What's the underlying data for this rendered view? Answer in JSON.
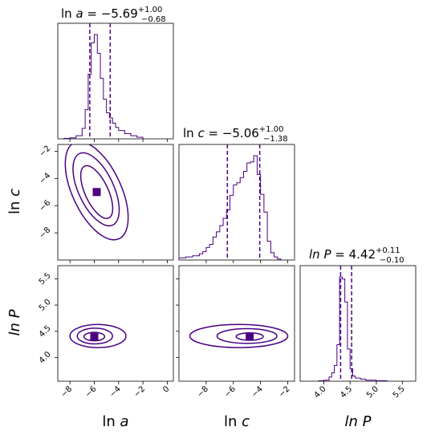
{
  "chart_data": {
    "type": "corner",
    "color": "#4b0082",
    "parameters": [
      {
        "key": "lna",
        "label_text": "ln ",
        "label_var": "a",
        "italic_all": false,
        "title_prefix": "ln ",
        "title_var": "a",
        "median": "−5.69",
        "plus": "+1.00",
        "minus": "−0.68",
        "range": [
          -9,
          0.5
        ],
        "ticks": [
          -8,
          -6,
          -4,
          -2,
          0
        ],
        "tick_labels": [
          "−8",
          "−6",
          "−4",
          "−2",
          "0"
        ],
        "quantiles": [
          -6.37,
          -5.69,
          -4.69
        ]
      },
      {
        "key": "lnc",
        "label_text": "ln ",
        "label_var": "c",
        "italic_all": false,
        "title_prefix": "ln ",
        "title_var": "c",
        "median": "−5.06",
        "plus": "+1.00",
        "minus": "−1.38",
        "range": [
          -10,
          -1.5
        ],
        "ticks": [
          -8,
          -6,
          -4,
          -2
        ],
        "tick_labels": [
          "−8",
          "−6",
          "−4",
          "−2"
        ],
        "quantiles": [
          -6.44,
          -5.06,
          -4.06
        ]
      },
      {
        "key": "lnP",
        "label_text": "",
        "label_var": "ln P",
        "italic_all": true,
        "title_prefix": "",
        "title_var": "ln P",
        "median": "4.42",
        "plus": "+0.11",
        "minus": "−0.10",
        "range": [
          3.55,
          5.75
        ],
        "ticks": [
          4.0,
          4.5,
          5.0,
          5.5
        ],
        "tick_labels": [
          "4.0",
          "4.5",
          "5.0",
          "5.5"
        ],
        "quantiles": [
          4.32,
          4.42,
          4.53
        ]
      }
    ],
    "histograms": {
      "lna": {
        "edges": [
          -8.5,
          -8,
          -7.5,
          -7,
          -6.75,
          -6.5,
          -6.25,
          -6,
          -5.75,
          -5.5,
          -5.25,
          -5,
          -4.75,
          -4.5,
          -4.25,
          -4,
          -3.5,
          -3,
          -2.5,
          -2
        ],
        "counts": [
          0.5,
          1,
          3,
          10,
          28,
          62,
          92,
          100,
          82,
          58,
          38,
          25,
          20,
          15,
          11,
          8,
          5,
          3,
          1.5
        ]
      },
      "lnc": {
        "edges": [
          -10,
          -9.5,
          -9,
          -8.5,
          -8.25,
          -8,
          -7.75,
          -7.5,
          -7.25,
          -7,
          -6.75,
          -6.5,
          -6.25,
          -6,
          -5.75,
          -5.5,
          -5.25,
          -5,
          -4.75,
          -4.5,
          -4.25,
          -4,
          -3.75,
          -3.5,
          -3.25,
          -3,
          -2.75,
          -2.5
        ],
        "counts": [
          2,
          3,
          4,
          6,
          8,
          12,
          15,
          22,
          27,
          33,
          40,
          48,
          62,
          72,
          74,
          79,
          85,
          93,
          94,
          100,
          82,
          63,
          46,
          18,
          7,
          3,
          1
        ]
      },
      "lnP": {
        "edges": [
          3.9,
          4.0,
          4.1,
          4.15,
          4.2,
          4.25,
          4.3,
          4.35,
          4.4,
          4.45,
          4.5,
          4.55,
          4.6,
          4.7,
          4.8,
          5.0,
          5.2
        ],
        "counts": [
          0.5,
          1,
          4,
          8,
          15,
          35,
          100,
          98,
          76,
          31,
          12,
          5,
          3,
          2,
          1,
          0.5
        ]
      }
    },
    "contours": {
      "lna_lnc": [
        {
          "cx": -5.8,
          "cy": -5.0,
          "rx": 0.95,
          "ry": 2.1,
          "rot": -25,
          "level": 0.9
        },
        {
          "cx": -5.85,
          "cy": -4.8,
          "rx": 1.45,
          "ry": 2.9,
          "rot": -25,
          "level": 0.6
        },
        {
          "cx": -5.8,
          "cy": -4.9,
          "rx": 2.0,
          "ry": 3.9,
          "rot": -25,
          "level": 0.3
        }
      ],
      "lna_lnP": [
        {
          "cx": -6.0,
          "cy": 4.4,
          "rx": 0.85,
          "ry": 0.08,
          "rot": 0,
          "level": 0.9
        },
        {
          "cx": -5.95,
          "cy": 4.41,
          "rx": 1.45,
          "ry": 0.15,
          "rot": 0,
          "level": 0.6
        },
        {
          "cx": -5.7,
          "cy": 4.41,
          "rx": 2.3,
          "ry": 0.22,
          "rot": 0,
          "level": 0.3
        }
      ],
      "lnc_lnP": [
        {
          "cx": -4.8,
          "cy": 4.4,
          "rx": 1.0,
          "ry": 0.07,
          "rot": 0,
          "level": 0.9
        },
        {
          "cx": -5.0,
          "cy": 4.41,
          "rx": 2.2,
          "ry": 0.14,
          "rot": 0,
          "level": 0.6
        },
        {
          "cx": -5.6,
          "cy": 4.41,
          "rx": 3.6,
          "ry": 0.22,
          "rot": 0,
          "level": 0.3
        }
      ]
    }
  }
}
